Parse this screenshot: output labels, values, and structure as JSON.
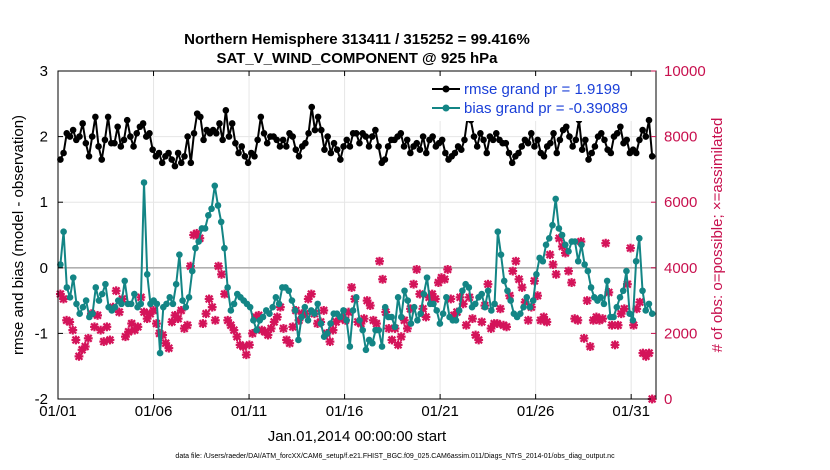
{
  "chart_data": {
    "type": "line",
    "title": "Northern Hemisphere 313411 / 315252 = 99.416%",
    "subtitle": "SAT_V_WIND_COMPONENT @ 925 hPa",
    "xlabel": "Jan.01,2014 00:00:00 start",
    "ylabel": "rmse and bias (model - observation)",
    "ylabel_right": "# of obs: o=possible; ×=assimilated",
    "ylim": [
      -2,
      3
    ],
    "ylim_right": [
      0,
      10000
    ],
    "x_range": [
      1,
      32.3
    ],
    "x_ticks": [
      1,
      6,
      11,
      16,
      21,
      26,
      31
    ],
    "x_tick_labels": [
      "01/01",
      "01/06",
      "01/11",
      "01/16",
      "01/21",
      "01/26",
      "01/31"
    ],
    "y_ticks": [
      -2,
      -1,
      0,
      1,
      2,
      3
    ],
    "y_tick_labels": [
      "-2",
      "-1",
      "0",
      "1",
      "2",
      "3"
    ],
    "y_right_ticks": [
      0,
      2000,
      4000,
      6000,
      8000,
      10000
    ],
    "y_right_tick_labels": [
      "0",
      "2000",
      "4000",
      "6000",
      "8000",
      "10000"
    ],
    "footnote": "data file: /Users/raeder/DAI/ATM_forcXX/CAM6_setup/f.e21.FHIST_BGC.f09_025.CAM6assim.011/Diags_NTrS_2014-01/obs_diag_output.nc",
    "legend": [
      "rmse grand pr = 1.9199",
      "bias grand pr = -0.39089"
    ],
    "series": [
      {
        "name": "rmse",
        "color": "#000000",
        "values": [
          1.65,
          1.75,
          2.05,
          2.0,
          2.1,
          1.95,
          2.0,
          2.2,
          1.9,
          1.7,
          2.0,
          2.3,
          1.85,
          1.65,
          1.95,
          2.3,
          1.9,
          1.9,
          2.15,
          1.85,
          1.95,
          2.25,
          2.0,
          1.85,
          2.05,
          2.15,
          2.2,
          2.0,
          2.05,
          1.8,
          1.7,
          1.75,
          1.6,
          1.7,
          1.75,
          1.65,
          1.55,
          1.75,
          1.6,
          1.7,
          2.0,
          1.6,
          2.05,
          2.35,
          2.3,
          1.95,
          2.1,
          2.05,
          2.1,
          2.05,
          2.2,
          1.95,
          2.4,
          2.0,
          2.2,
          1.9,
          1.75,
          1.85,
          1.7,
          1.6,
          1.75,
          1.7,
          1.95,
          2.3,
          2.05,
          1.9,
          2.0,
          2.0,
          1.95,
          1.85,
          1.95,
          1.85,
          2.05,
          2.0,
          1.8,
          1.7,
          1.85,
          1.9,
          2.05,
          2.45,
          2.1,
          2.3,
          2.1,
          1.8,
          2.0,
          1.75,
          1.9,
          1.8,
          1.65,
          1.85,
          1.95,
          1.85,
          2.05,
          2.05,
          1.9,
          2.05,
          2.0,
          1.85,
          2.0,
          2.1,
          1.85,
          1.6,
          1.65,
          1.85,
          1.95,
          1.95,
          2.0,
          2.05,
          1.85,
          1.95,
          1.75,
          1.85,
          1.9,
          1.8,
          2.0,
          1.75,
          1.95,
          2.0,
          1.85,
          1.9,
          1.95,
          1.75,
          1.65,
          1.7,
          1.75,
          1.85,
          1.8,
          1.95,
          2.3,
          2.25,
          2.0,
          1.85,
          2.05,
          1.95,
          1.75,
          2.0,
          1.95,
          2.05,
          1.95,
          1.9,
          1.9,
          1.75,
          1.6,
          1.7,
          1.75,
          1.85,
          1.95,
          1.9,
          2.05,
          1.85,
          1.95,
          1.75,
          1.7,
          1.85,
          1.9,
          2.05,
          1.75,
          1.95,
          2.1,
          2.15,
          2.0,
          1.85,
          1.95,
          2.25,
          1.8,
          1.95,
          1.65,
          1.75,
          1.85,
          2.0,
          2.05,
          1.95,
          1.8,
          1.75,
          2.0,
          2.05,
          2.15,
          1.9,
          1.95,
          1.75,
          1.8,
          1.75,
          1.95,
          2.1,
          2.0,
          2.25,
          1.7
        ]
      },
      {
        "name": "bias",
        "color": "#138585",
        "values": [
          0.05,
          0.55,
          -0.3,
          -0.45,
          -0.15,
          -0.55,
          -0.7,
          -0.6,
          -0.5,
          -0.75,
          -0.7,
          -0.3,
          -0.5,
          -0.4,
          -0.25,
          -0.6,
          -0.65,
          -0.6,
          -0.5,
          -0.55,
          -0.2,
          -0.55,
          -0.55,
          -0.4,
          -0.6,
          -0.55,
          1.3,
          -0.1,
          -0.55,
          -0.5,
          -0.55,
          -1.3,
          -0.6,
          -0.55,
          -0.45,
          -0.55,
          -0.25,
          0.2,
          -0.5,
          -0.6,
          -0.45,
          -0.05,
          0.3,
          0.4,
          0.6,
          0.6,
          0.8,
          0.9,
          1.25,
          0.95,
          0.7,
          0.3,
          -0.3,
          -0.65,
          -0.55,
          -0.4,
          -0.45,
          -0.5,
          -0.55,
          -0.6,
          -0.8,
          -0.95,
          -0.8,
          -0.75,
          -0.65,
          -0.7,
          -0.6,
          -0.45,
          -0.55,
          -0.3,
          -0.3,
          -0.35,
          -0.5,
          -0.65,
          -1.1,
          -0.75,
          -0.6,
          -0.8,
          -0.65,
          -0.7,
          -0.55,
          -0.85,
          -1.05,
          -1.0,
          -0.85,
          -0.7,
          -0.7,
          -0.75,
          -0.65,
          -0.8,
          -1.2,
          -0.65,
          -0.45,
          -0.8,
          -0.95,
          -1.25,
          -1.1,
          -1.15,
          -0.95,
          -0.95,
          -1.2,
          -0.6,
          -0.75,
          -0.75,
          -0.9,
          -0.45,
          -0.75,
          -0.35,
          -0.5,
          -0.85,
          -0.6,
          -0.8,
          -0.7,
          -0.4,
          -0.15,
          -0.55,
          -0.55,
          -0.65,
          -0.85,
          -0.7,
          -0.45,
          -0.75,
          -0.8,
          -0.8,
          -0.65,
          -0.35,
          -0.25,
          -0.3,
          -0.6,
          -0.55,
          -0.45,
          -0.4,
          -0.6,
          -0.35,
          -0.65,
          -0.55,
          0.55,
          0.2,
          -0.2,
          -0.35,
          -0.5,
          -0.7,
          -0.75,
          -0.7,
          -0.6,
          -0.45,
          -0.6,
          -0.5,
          -0.1,
          0.15,
          0.1,
          0.35,
          0.45,
          0.65,
          1.05,
          0.6,
          0.5,
          0.35,
          0.25,
          0.4,
          0.4,
          0.1,
          0.35,
          0.05,
          -0.05,
          -0.3,
          -0.45,
          -0.5,
          -0.45,
          -0.55,
          -0.2,
          -0.75,
          -0.75,
          -0.6,
          -0.45,
          -0.35,
          -0.05,
          -0.7,
          -0.8,
          0.1,
          0.45,
          -0.35,
          -0.65,
          -0.55,
          -0.7
        ]
      }
    ],
    "obs_assimilated": [
      3200,
      3050,
      2400,
      2350,
      2100,
      1800,
      1300,
      1500,
      1600,
      1850,
      2600,
      2200,
      2550,
      2100,
      1750,
      2200,
      1800,
      2800,
      3300,
      2650,
      3050,
      1900,
      2050,
      2300,
      2100,
      2200,
      3100,
      2650,
      2450,
      2600,
      2700,
      2300,
      2000,
      1950,
      1700,
      1550,
      2350,
      2550,
      2450,
      2700,
      2150,
      2250,
      4050,
      5000,
      5050,
      4900,
      2300,
      2600,
      3050,
      2800,
      2400,
      4050,
      3800,
      3200,
      2400,
      2250,
      2100,
      1900,
      1650,
      1600,
      1350,
      1650,
      2000,
      2500,
      2550,
      2100,
      2050,
      1950,
      2150,
      2350,
      2500,
      2800,
      2150,
      1800,
      1700,
      2200,
      2700,
      2400,
      2600,
      2600,
      3050,
      3200,
      2600,
      2300,
      2350,
      2700,
      2000,
      1750,
      2100,
      2350,
      2450,
      2500,
      2400,
      2650,
      3400,
      3050,
      2350,
      2300,
      2450,
      3000,
      2850,
      2400,
      2300,
      4200,
      3650,
      2650,
      2150,
      1800,
      2150,
      1650,
      1900,
      2400,
      2150,
      2750,
      3500,
      3950,
      3200,
      2750,
      2500,
      3100,
      3200,
      3050,
      3550,
      3700,
      3650,
      3950,
      3050,
      2550,
      2650,
      3100,
      2900,
      2250,
      3100,
      2450,
      1950,
      1800,
      2350,
      2850,
      3500,
      2150,
      2300,
      2300,
      2750,
      2250,
      2200,
      3150,
      3900,
      4200,
      3650,
      3400,
      2950,
      2400,
      2800,
      3600,
      3150,
      2400,
      2500,
      2350,
      4400,
      4100,
      3800,
      4900,
      4650,
      4450,
      3900,
      3550,
      2450,
      2400,
      4800,
      1850,
      3000,
      1600,
      2400,
      2500,
      2400,
      2450,
      4750,
      3250,
      2250,
      1650,
      2250,
      2600,
      2750,
      3500,
      4600,
      2250,
      2750,
      2950,
      1400,
      1300,
      1400,
      0
    ]
  }
}
